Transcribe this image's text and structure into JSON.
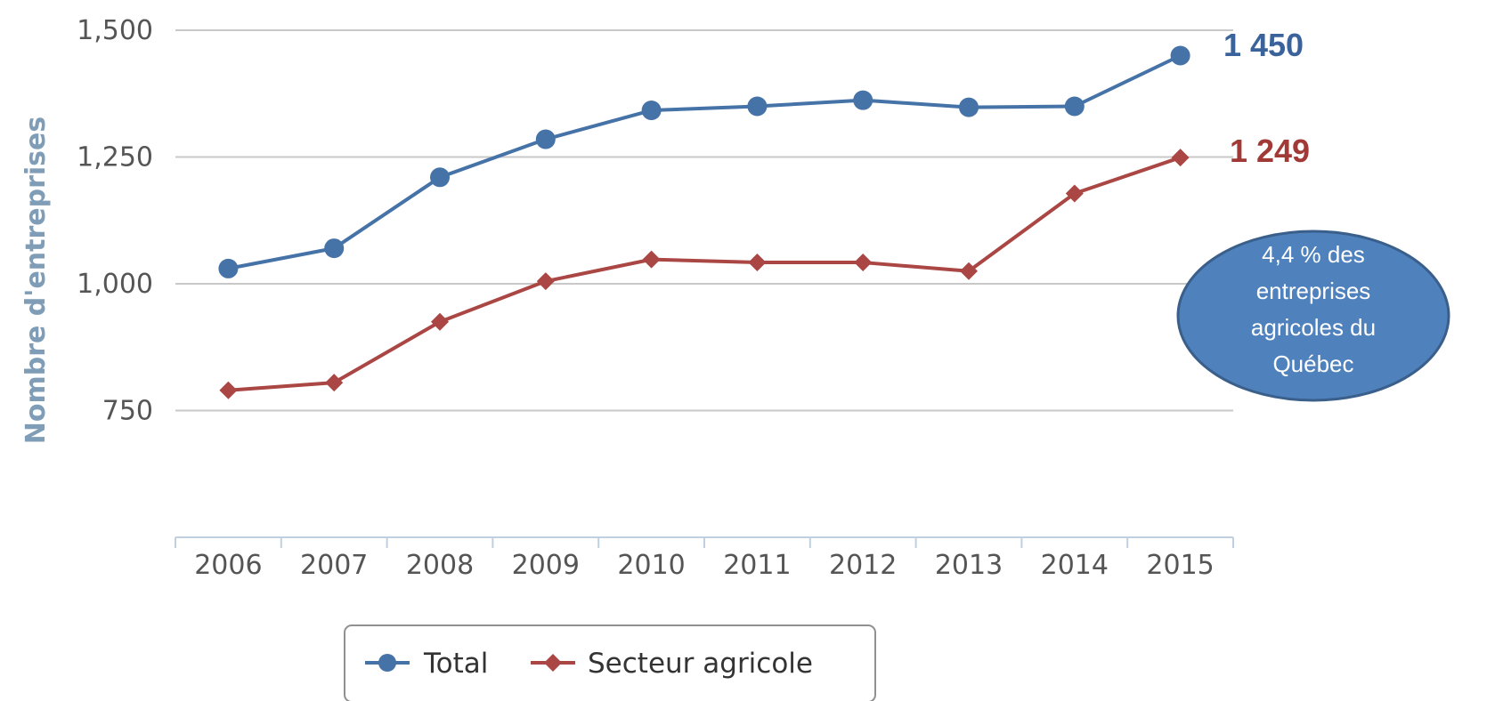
{
  "colors": {
    "total": "#4572a7",
    "secteur": "#aa4643",
    "total_label": "#3b639b",
    "secteur_label": "#a13a36",
    "callout_fill": "#4f81bd",
    "callout_stroke": "#3a5f8a"
  },
  "chart_data": {
    "type": "line",
    "x": [
      "2006",
      "2007",
      "2008",
      "2009",
      "2010",
      "2011",
      "2012",
      "2013",
      "2014",
      "2015"
    ],
    "series": [
      {
        "name": "Total",
        "marker": "circle",
        "values": [
          1030,
          1070,
          1210,
          1285,
          1342,
          1350,
          1362,
          1348,
          1350,
          1450
        ]
      },
      {
        "name": "Secteur agricole",
        "marker": "diamond",
        "values": [
          790,
          805,
          925,
          1005,
          1048,
          1042,
          1042,
          1025,
          1178,
          1249
        ]
      }
    ],
    "ylabel": "Nombre d'entreprises",
    "xlabel": "",
    "ylim": [
      500,
      1500
    ],
    "yticks": [
      750,
      1000,
      1250,
      1500
    ],
    "ytick_labels": [
      "750",
      "1,000",
      "1,250",
      "1,500"
    ],
    "grid": true,
    "legend_position": "bottom-center",
    "annotations": {
      "total_end": "1 450",
      "secteur_end": "1 249",
      "callout_lines": [
        "4,4 % des",
        "entreprises",
        "agricoles du",
        "Québec"
      ]
    }
  }
}
